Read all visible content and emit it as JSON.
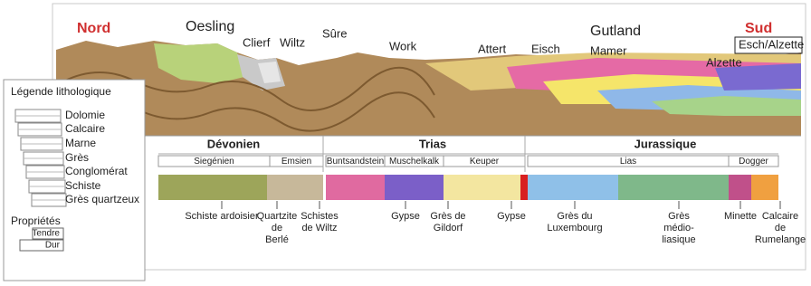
{
  "section": {
    "north": "Nord",
    "south": "Sud",
    "places": [
      "Oesling",
      "Clierf",
      "Wiltz",
      "Sûre",
      "Work",
      "Attert",
      "Eisch",
      "Gutland",
      "Mamer",
      "Esch/Alzette",
      "Alzette"
    ]
  },
  "periods": [
    "Dévonien",
    "Trias",
    "Jurassique"
  ],
  "stages": [
    "Siegénien",
    "Emsien",
    "Buntsandstein",
    "Muschelkalk",
    "Keuper",
    "Lias",
    "Dogger"
  ],
  "rocks": [
    [
      "Schiste ardoisier"
    ],
    [
      "Quartzite",
      "de",
      "Berlé"
    ],
    [
      "Schistes",
      "de Wiltz"
    ],
    [
      "Gypse"
    ],
    [
      "Grès de",
      "Gildorf"
    ],
    [
      "Gypse"
    ],
    [
      "Grès du",
      "Luxembourg"
    ],
    [
      "Grès",
      "médio-",
      "liasique"
    ],
    [
      "Minette"
    ],
    [
      "Calcaire",
      "de",
      "Rumelange"
    ]
  ],
  "legend": {
    "title": "Légende lithologique",
    "items": [
      "Dolomie",
      "Calcaire",
      "Marne",
      "Grès",
      "Conglomérat",
      "Schiste",
      "Grès quartzeux"
    ],
    "properties_title": "Propriétés",
    "properties": [
      "Tendre",
      "Dur"
    ]
  }
}
